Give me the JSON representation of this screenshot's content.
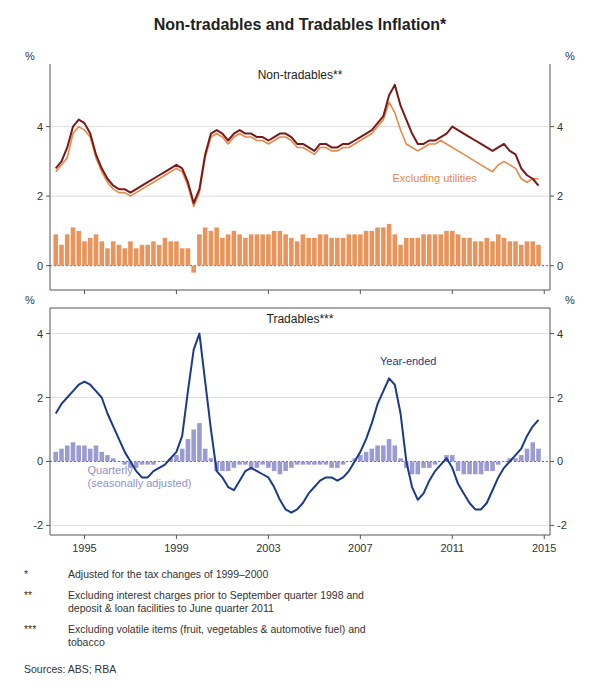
{
  "chart_data": [
    {
      "type": "line",
      "title": "Non-tradables and Tradables Inflation*",
      "subtitle": "Non-tradables**",
      "ylabel": "%",
      "y2label": "%",
      "x": [
        1993.75,
        1994.0,
        1994.25,
        1994.5,
        1994.75,
        1995.0,
        1995.25,
        1995.5,
        1995.75,
        1996.0,
        1996.25,
        1996.5,
        1996.75,
        1997.0,
        1997.25,
        1997.5,
        1997.75,
        1998.0,
        1998.25,
        1998.5,
        1998.75,
        1999.0,
        1999.25,
        1999.5,
        1999.75,
        2000.0,
        2000.25,
        2000.5,
        2000.75,
        2001.0,
        2001.25,
        2001.5,
        2001.75,
        2002.0,
        2002.25,
        2002.5,
        2002.75,
        2003.0,
        2003.25,
        2003.5,
        2003.75,
        2004.0,
        2004.25,
        2004.5,
        2004.75,
        2005.0,
        2005.25,
        2005.5,
        2005.75,
        2006.0,
        2006.25,
        2006.5,
        2006.75,
        2007.0,
        2007.25,
        2007.5,
        2007.75,
        2008.0,
        2008.25,
        2008.5,
        2008.75,
        2009.0,
        2009.25,
        2009.5,
        2009.75,
        2010.0,
        2010.25,
        2010.5,
        2010.75,
        2011.0,
        2011.25,
        2011.5,
        2011.75,
        2012.0,
        2012.25,
        2012.5,
        2012.75,
        2013.0,
        2013.25,
        2013.5,
        2013.75,
        2014.0,
        2014.25,
        2014.5,
        2014.75
      ],
      "series": [
        {
          "type": "bar",
          "color": "#E8884A",
          "values": [
            0.9,
            0.6,
            0.9,
            1.1,
            1.0,
            0.7,
            0.8,
            0.9,
            0.7,
            0.5,
            0.7,
            0.6,
            0.5,
            0.7,
            0.5,
            0.6,
            0.6,
            0.7,
            0.6,
            0.8,
            0.7,
            0.7,
            0.5,
            0.5,
            -0.2,
            0.9,
            1.1,
            1.0,
            1.1,
            0.8,
            0.9,
            1.0,
            0.9,
            0.8,
            0.9,
            0.9,
            0.9,
            0.9,
            1.0,
            1.0,
            0.9,
            0.8,
            0.7,
            0.9,
            0.8,
            0.8,
            0.9,
            0.9,
            0.8,
            0.8,
            0.8,
            0.9,
            0.9,
            0.9,
            1.0,
            1.0,
            1.1,
            1.1,
            1.2,
            0.9,
            0.6,
            0.8,
            0.8,
            0.8,
            0.9,
            0.9,
            0.9,
            0.9,
            1.0,
            1.0,
            0.9,
            0.8,
            0.8,
            0.7,
            0.7,
            0.8,
            0.7,
            0.9,
            0.8,
            0.7,
            0.7,
            0.6,
            0.7,
            0.7,
            0.6
          ]
        },
        {
          "type": "line",
          "name": "Excluding utilities",
          "color": "#E8884A",
          "values": [
            2.7,
            2.9,
            3.1,
            3.8,
            4.0,
            3.9,
            3.7,
            3.1,
            2.7,
            2.4,
            2.2,
            2.1,
            2.1,
            2.0,
            2.1,
            2.2,
            2.3,
            2.4,
            2.5,
            2.6,
            2.7,
            2.8,
            2.7,
            2.3,
            1.7,
            2.1,
            3.1,
            3.7,
            3.8,
            3.7,
            3.5,
            3.7,
            3.8,
            3.7,
            3.7,
            3.6,
            3.6,
            3.5,
            3.6,
            3.7,
            3.7,
            3.6,
            3.4,
            3.4,
            3.3,
            3.2,
            3.4,
            3.4,
            3.3,
            3.3,
            3.4,
            3.4,
            3.5,
            3.6,
            3.7,
            3.8,
            4.0,
            4.2,
            4.7,
            4.4,
            3.9,
            3.5,
            3.4,
            3.3,
            3.4,
            3.5,
            3.5,
            3.6,
            3.5,
            3.4,
            3.3,
            3.2,
            3.1,
            3.0,
            2.9,
            2.8,
            2.7,
            2.9,
            3.0,
            2.9,
            2.8,
            2.5,
            2.4,
            2.5,
            2.5
          ]
        },
        {
          "type": "line",
          "color": "#7B1818",
          "values": [
            2.8,
            3.0,
            3.4,
            4.0,
            4.2,
            4.1,
            3.8,
            3.2,
            2.8,
            2.5,
            2.3,
            2.2,
            2.2,
            2.1,
            2.2,
            2.3,
            2.4,
            2.5,
            2.6,
            2.7,
            2.8,
            2.9,
            2.8,
            2.4,
            1.8,
            2.2,
            3.2,
            3.8,
            3.9,
            3.8,
            3.6,
            3.8,
            3.9,
            3.8,
            3.8,
            3.7,
            3.7,
            3.6,
            3.7,
            3.8,
            3.8,
            3.7,
            3.5,
            3.5,
            3.4,
            3.3,
            3.5,
            3.5,
            3.4,
            3.4,
            3.5,
            3.5,
            3.6,
            3.7,
            3.8,
            3.9,
            4.1,
            4.3,
            4.9,
            5.2,
            4.6,
            4.2,
            3.8,
            3.5,
            3.5,
            3.6,
            3.6,
            3.7,
            3.8,
            4.0,
            3.9,
            3.8,
            3.7,
            3.6,
            3.5,
            3.4,
            3.3,
            3.4,
            3.5,
            3.3,
            3.2,
            2.8,
            2.6,
            2.5,
            2.3
          ]
        }
      ],
      "xlim": [
        1993.5,
        2015.25
      ],
      "xticks": [
        1995,
        1999,
        2003,
        2007,
        2011,
        2015
      ],
      "ylim": [
        -0.7,
        5.8
      ],
      "yticks": [
        0,
        2,
        4
      ],
      "y2lim": [
        -0.7,
        5.8
      ],
      "y2ticks": [
        0,
        2,
        4
      ],
      "grid": true,
      "tick_labels": "y"
    },
    {
      "type": "line",
      "subtitle": "Tradables***",
      "ylabel": "%",
      "y2label": "%",
      "x": [
        1993.75,
        1994.0,
        1994.25,
        1994.5,
        1994.75,
        1995.0,
        1995.25,
        1995.5,
        1995.75,
        1996.0,
        1996.25,
        1996.5,
        1996.75,
        1997.0,
        1997.25,
        1997.5,
        1997.75,
        1998.0,
        1998.25,
        1998.5,
        1998.75,
        1999.0,
        1999.25,
        1999.5,
        1999.75,
        2000.0,
        2000.25,
        2000.5,
        2000.75,
        2001.0,
        2001.25,
        2001.5,
        2001.75,
        2002.0,
        2002.25,
        2002.5,
        2002.75,
        2003.0,
        2003.25,
        2003.5,
        2003.75,
        2004.0,
        2004.25,
        2004.5,
        2004.75,
        2005.0,
        2005.25,
        2005.5,
        2005.75,
        2006.0,
        2006.25,
        2006.5,
        2006.75,
        2007.0,
        2007.25,
        2007.5,
        2007.75,
        2008.0,
        2008.25,
        2008.5,
        2008.75,
        2009.0,
        2009.25,
        2009.5,
        2009.75,
        2010.0,
        2010.25,
        2010.5,
        2010.75,
        2011.0,
        2011.25,
        2011.5,
        2011.75,
        2012.0,
        2012.25,
        2012.5,
        2012.75,
        2013.0,
        2013.25,
        2013.5,
        2013.75,
        2014.0,
        2014.25,
        2014.5,
        2014.75
      ],
      "series": [
        {
          "type": "bar",
          "name": "Quarterly\n(seasonally adjusted)",
          "color": "#9090CC",
          "values": [
            0.3,
            0.4,
            0.5,
            0.6,
            0.5,
            0.5,
            0.4,
            0.5,
            0.3,
            0.2,
            0.1,
            0.0,
            -0.1,
            -0.2,
            -0.2,
            -0.1,
            -0.1,
            -0.1,
            0.0,
            0.0,
            0.1,
            0.2,
            0.4,
            0.7,
            1.0,
            1.2,
            0.4,
            0.1,
            -0.3,
            -0.3,
            -0.3,
            -0.2,
            -0.1,
            -0.1,
            -0.2,
            -0.2,
            -0.1,
            -0.2,
            -0.3,
            -0.4,
            -0.3,
            -0.2,
            -0.1,
            -0.1,
            -0.1,
            -0.1,
            -0.1,
            -0.1,
            -0.2,
            -0.2,
            -0.1,
            0.0,
            0.1,
            0.2,
            0.3,
            0.4,
            0.5,
            0.5,
            0.7,
            0.5,
            0.1,
            -0.2,
            -0.4,
            -0.4,
            -0.2,
            -0.2,
            -0.1,
            0.0,
            0.2,
            0.2,
            -0.3,
            -0.4,
            -0.4,
            -0.4,
            -0.4,
            -0.3,
            -0.3,
            -0.1,
            0.0,
            0.1,
            0.1,
            0.2,
            0.4,
            0.6,
            0.4
          ]
        },
        {
          "type": "line",
          "name": "Year-ended",
          "color": "#1A3A8A",
          "values": [
            1.5,
            1.8,
            2.0,
            2.2,
            2.4,
            2.5,
            2.4,
            2.2,
            2.0,
            1.5,
            1.1,
            0.7,
            0.3,
            0.0,
            -0.3,
            -0.5,
            -0.5,
            -0.3,
            -0.2,
            -0.1,
            0.1,
            0.3,
            0.8,
            2.2,
            3.5,
            4.0,
            2.5,
            1.0,
            -0.3,
            -0.5,
            -0.8,
            -0.9,
            -0.6,
            -0.3,
            -0.2,
            -0.3,
            -0.4,
            -0.5,
            -0.8,
            -1.2,
            -1.5,
            -1.6,
            -1.5,
            -1.3,
            -1.0,
            -0.8,
            -0.6,
            -0.5,
            -0.5,
            -0.6,
            -0.5,
            -0.3,
            0.0,
            0.3,
            0.7,
            1.2,
            1.8,
            2.2,
            2.6,
            2.4,
            1.5,
            0.0,
            -0.8,
            -1.2,
            -1.0,
            -0.6,
            -0.3,
            -0.1,
            0.1,
            -0.2,
            -0.7,
            -1.0,
            -1.3,
            -1.5,
            -1.5,
            -1.3,
            -0.9,
            -0.5,
            -0.2,
            0.0,
            0.2,
            0.4,
            0.8,
            1.1,
            1.3
          ]
        }
      ],
      "xlim": [
        1993.5,
        2015.25
      ],
      "xticks": [
        1995,
        1999,
        2003,
        2007,
        2011,
        2015
      ],
      "ylim": [
        -2.3,
        4.8
      ],
      "yticks": [
        -2,
        0,
        2,
        4
      ],
      "y2lim": [
        -2.3,
        4.8
      ],
      "y2ticks": [
        -2,
        0,
        2,
        4
      ],
      "grid": true,
      "footnotes": [
        {
          "symbol": "*",
          "text": "Adjusted for the tax changes of 1999–2000"
        },
        {
          "symbol": "**",
          "text": "Excluding interest charges prior to September quarter 1998 and\ndeposit & loan facilities to June quarter 2011"
        },
        {
          "symbol": "***",
          "text": "Excluding volatile items (fruit, vegetables & automotive fuel) and\ntobacco"
        },
        {
          "text": "Sources:  ABS; RBA"
        }
      ]
    }
  ]
}
